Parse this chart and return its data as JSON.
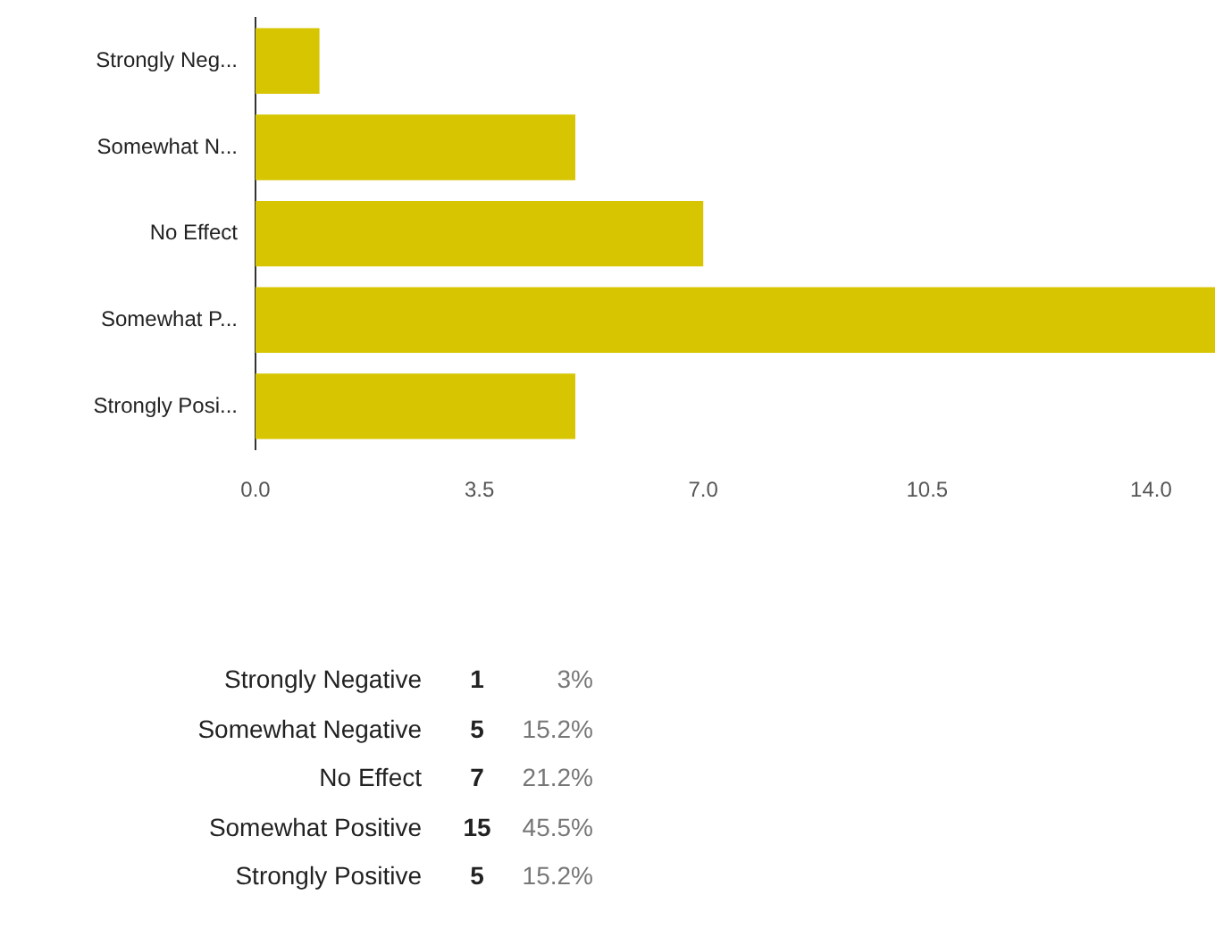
{
  "chart_data": {
    "type": "bar",
    "orientation": "horizontal",
    "categories": [
      "Strongly Neg...",
      "Somewhat N...",
      "No Effect",
      "Somewhat P...",
      "Strongly Posi..."
    ],
    "values": [
      1,
      5,
      7,
      15,
      5
    ],
    "annotations": [
      "Strongly Negative",
      "Somewhat Negative",
      "No Effect",
      "Somewhat Positive",
      "Strongly Positive",
      "1",
      "5",
      "7",
      "15",
      "5",
      "3%",
      "15.2%",
      "21.2%",
      "45.5%",
      "15.2%"
    ],
    "color": "#d6c500",
    "xlim": [
      0,
      15
    ],
    "xticks": [
      {
        "value": 0,
        "label": "0.0"
      },
      {
        "value": 3.5,
        "label": "3.5"
      },
      {
        "value": 7,
        "label": "7.0"
      },
      {
        "value": 10.5,
        "label": "10.5"
      },
      {
        "value": 14,
        "label": "14.0"
      }
    ],
    "grid": false,
    "legend": false
  }
}
